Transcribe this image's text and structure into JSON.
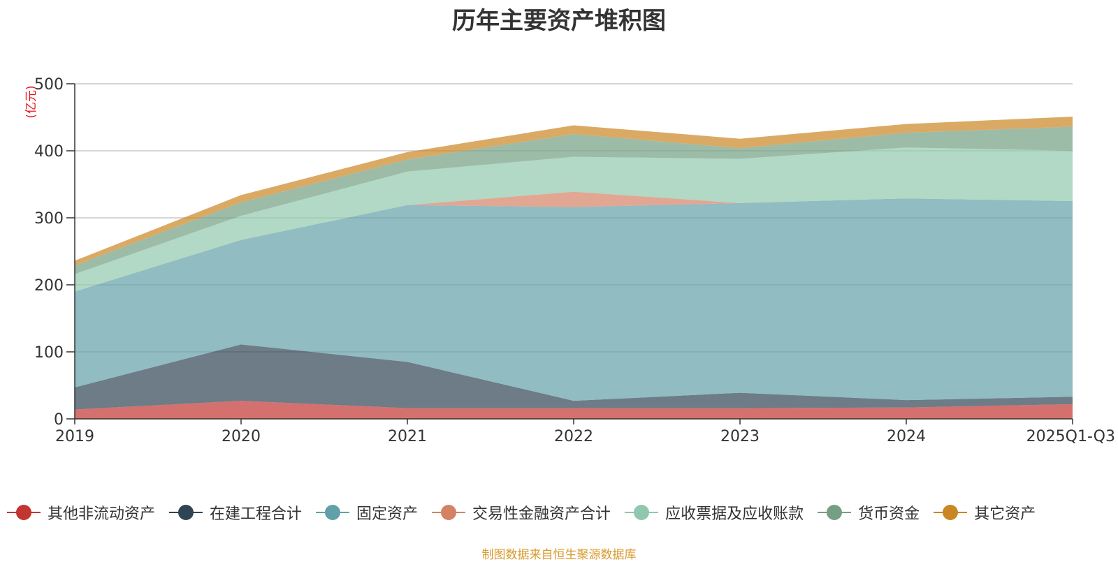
{
  "chart_data": {
    "type": "area",
    "stacked": true,
    "title": "历年主要资产堆积图",
    "ylabel": "(亿元)",
    "xlabel": "",
    "ylim": [
      0,
      500
    ],
    "yticks": [
      0,
      100,
      200,
      300,
      400,
      500
    ],
    "grid": true,
    "legend_position": "bottom",
    "categories": [
      "2019",
      "2020",
      "2021",
      "2022",
      "2023",
      "2024",
      "2025Q1-Q3"
    ],
    "series": [
      {
        "name": "其他非流动资产",
        "color": "#c23531",
        "values": [
          14,
          27,
          16,
          16,
          16,
          17,
          22
        ]
      },
      {
        "name": "在建工程合计",
        "color": "#2f4554",
        "values": [
          33,
          84,
          69,
          11,
          23,
          11,
          11
        ]
      },
      {
        "name": "固定资产",
        "color": "#61a0a8",
        "values": [
          143,
          156,
          234,
          289,
          283,
          301,
          292
        ]
      },
      {
        "name": "交易性金融资产合计",
        "color": "#d48265",
        "values": [
          0,
          0,
          0,
          23,
          0,
          0,
          0
        ]
      },
      {
        "name": "应收票据及应收账款",
        "color": "#91c7ae",
        "values": [
          26,
          36,
          50,
          52,
          66,
          76,
          75
        ]
      },
      {
        "name": "货币资金",
        "color": "#749f83",
        "values": [
          13,
          20,
          18,
          34,
          16,
          22,
          36
        ]
      },
      {
        "name": "其它资产",
        "color": "#ca8622",
        "values": [
          7,
          11,
          11,
          13,
          14,
          13,
          15
        ]
      }
    ]
  },
  "source_note": "制图数据来自恒生聚源数据库"
}
